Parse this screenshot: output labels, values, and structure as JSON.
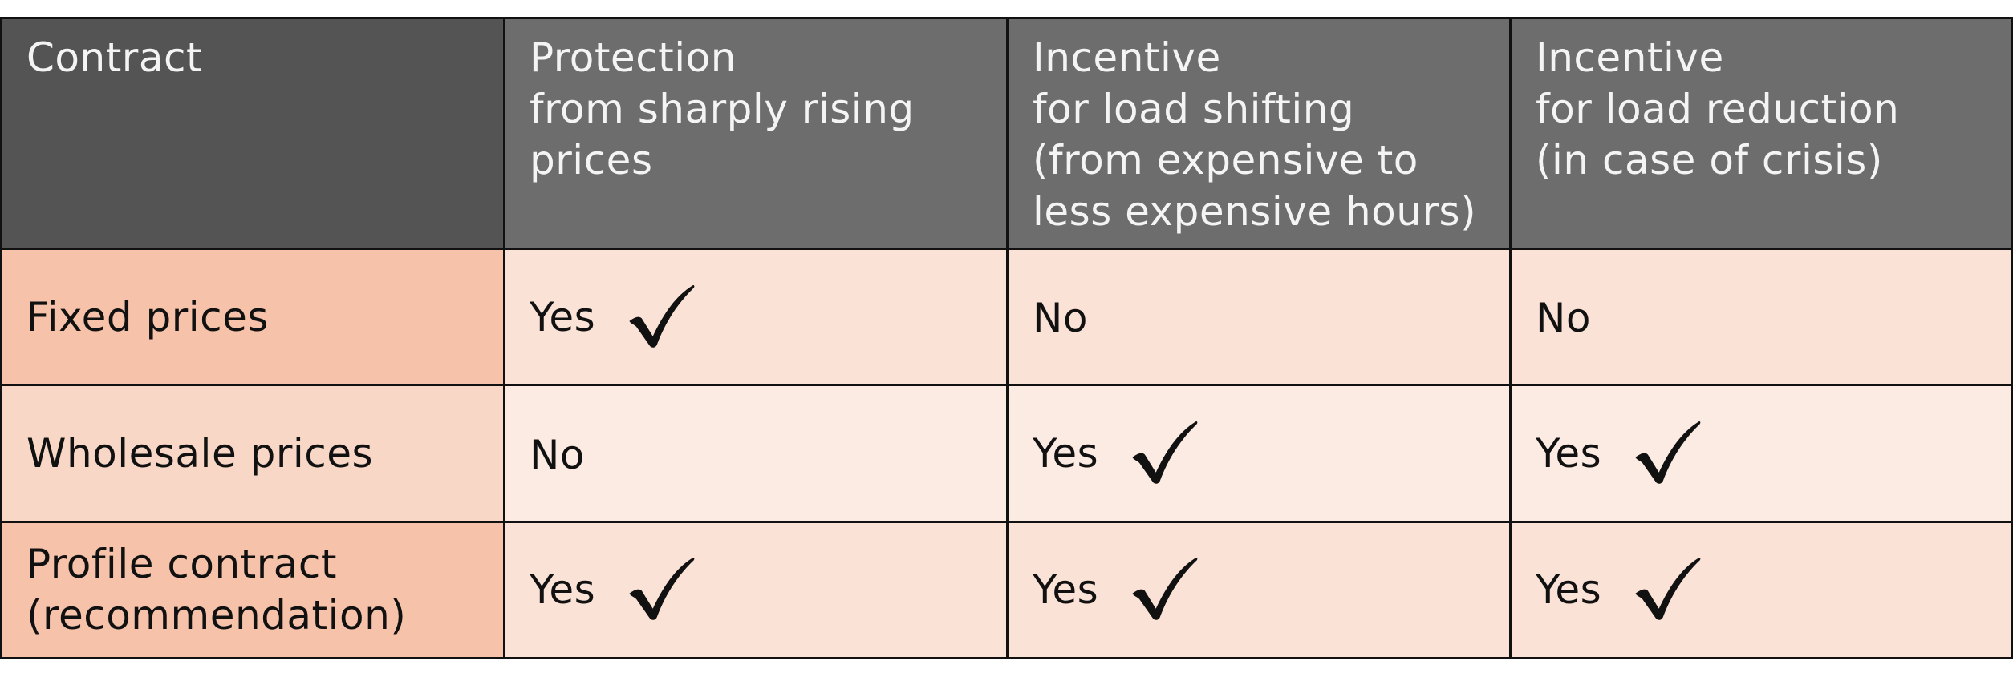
{
  "header": {
    "col1": "Contract",
    "col2": "Protection\nfrom sharply rising\nprices",
    "col3": "Incentive\nfor load shifting\n(from expensive to\nless expensive hours)",
    "col4": "Incentive\nfor load reduction\n(in case of crisis)"
  },
  "rows": [
    {
      "contract": "Fixed prices",
      "protection": "Yes",
      "protection_check": true,
      "shifting": "No",
      "shifting_check": false,
      "reduction": "No",
      "reduction_check": false
    },
    {
      "contract": "Wholesale prices",
      "protection": "No",
      "protection_check": false,
      "shifting": "Yes",
      "shifting_check": true,
      "reduction": "Yes",
      "reduction_check": true
    },
    {
      "contract": "Profile contract\n(recommendation)",
      "protection": "Yes",
      "protection_check": true,
      "shifting": "Yes",
      "shifting_check": true,
      "reduction": "Yes",
      "reduction_check": true
    }
  ],
  "colors": {
    "header_first": "#545454",
    "header": "#6d6d6d",
    "rowhead": "#f6c2a9",
    "rowhead_alt": "#f9d7c7",
    "cell": "#fbe2d7",
    "cell_alt": "#fcebe2"
  },
  "icons": {
    "check": "checkmark-icon"
  }
}
